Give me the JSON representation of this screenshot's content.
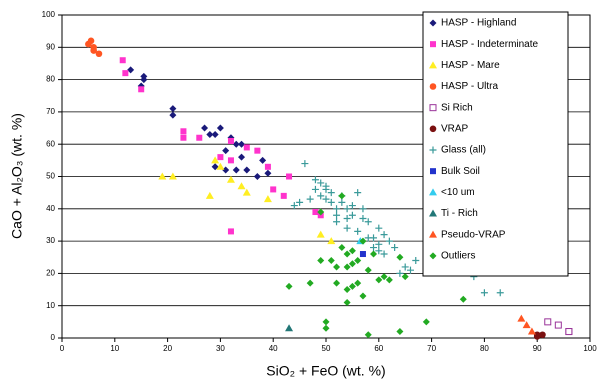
{
  "chart_data": {
    "type": "scatter",
    "xlabel": "SiO₂ + FeO (wt. %)",
    "ylabel": "CaO + Al₂O₃ (wt. %)",
    "xlim": [
      0,
      100
    ],
    "ylim": [
      0,
      100
    ],
    "xticks": [
      0,
      10,
      20,
      30,
      40,
      50,
      60,
      70,
      80,
      90,
      100
    ],
    "yticks": [
      0,
      10,
      20,
      30,
      40,
      50,
      60,
      70,
      80,
      90,
      100
    ],
    "grid": true,
    "legend": "upper right",
    "series": [
      {
        "name": "HASP - Highland",
        "color": "#1a1a7a",
        "marker": "diamond",
        "x": [
          13,
          15,
          15.5,
          15.5,
          21,
          21,
          27,
          28,
          29,
          30,
          29,
          31,
          31,
          32,
          33,
          34,
          33,
          35,
          37,
          38,
          39,
          34
        ],
        "values": [
          83,
          78,
          80,
          81,
          71,
          69,
          65,
          63,
          63,
          65,
          53,
          52,
          58,
          62,
          60,
          60,
          52,
          52,
          50,
          55,
          51,
          56
        ]
      },
      {
        "name": "HASP - Indeterminate",
        "color": "#ff33cc",
        "marker": "square",
        "x": [
          11.5,
          12,
          15,
          23,
          23,
          26,
          30,
          32,
          32,
          32,
          35,
          37,
          39,
          40,
          42,
          48,
          49,
          43
        ],
        "values": [
          86,
          82,
          77,
          64,
          62,
          62,
          56,
          61,
          55,
          33,
          59,
          58,
          53,
          46,
          44,
          39,
          38,
          50
        ]
      },
      {
        "name": "HASP - Mare",
        "color": "#ffee22",
        "marker": "triangle",
        "x": [
          19,
          21,
          28,
          29,
          30,
          32,
          34,
          35,
          39,
          49,
          51
        ],
        "values": [
          50,
          50,
          44,
          55,
          53,
          49,
          47,
          45,
          43,
          32,
          30
        ]
      },
      {
        "name": "HASP - Ultra",
        "color": "#ff5522",
        "marker": "circle",
        "x": [
          5,
          5.5,
          6,
          6,
          7
        ],
        "values": [
          91,
          92,
          90,
          89,
          88
        ]
      },
      {
        "name": "Si Rich",
        "color": "#993399",
        "marker": "hollow-square",
        "x": [
          92,
          94,
          96,
          96
        ],
        "values": [
          5,
          4,
          2,
          2
        ]
      },
      {
        "name": "VRAP",
        "color": "#7a1010",
        "marker": "circle",
        "x": [
          90,
          90,
          91
        ],
        "values": [
          1,
          0.5,
          1
        ]
      },
      {
        "name": "Glass (all)",
        "color": "#3a9a9a",
        "marker": "plus",
        "x": [
          45,
          46,
          48,
          48,
          49,
          49,
          50,
          50,
          50,
          51,
          51,
          52,
          52,
          53,
          53,
          54,
          54,
          55,
          55,
          56,
          57,
          57,
          58,
          59,
          59,
          60,
          60,
          61,
          61,
          62,
          63,
          64,
          65,
          66,
          67,
          69,
          70,
          71,
          78,
          80,
          83,
          52,
          54,
          56,
          58,
          60,
          44,
          47
        ],
        "values": [
          42,
          54,
          46,
          49,
          48,
          44,
          43,
          46,
          47,
          45,
          42,
          40,
          38,
          42,
          44,
          40,
          37,
          38,
          41,
          45,
          40,
          37,
          36,
          31,
          28,
          34,
          29,
          32,
          26,
          30,
          28,
          20,
          22,
          21,
          24,
          25,
          23,
          27,
          19,
          14,
          14,
          36,
          34,
          33,
          31,
          27,
          41,
          43
        ]
      },
      {
        "name": "Bulk Soil",
        "color": "#2233cc",
        "marker": "square",
        "x": [
          57
        ],
        "values": [
          26
        ]
      },
      {
        "name": "<10 um",
        "color": "#33ccee",
        "marker": "triangle",
        "x": [
          56.5
        ],
        "values": [
          30
        ]
      },
      {
        "name": "Ti - Rich",
        "color": "#227777",
        "marker": "triangle",
        "x": [
          43
        ],
        "values": [
          3
        ]
      },
      {
        "name": "Pseudo-VRAP",
        "color": "#ff5522",
        "marker": "triangle",
        "x": [
          87,
          88,
          89
        ],
        "values": [
          6,
          4,
          2
        ]
      },
      {
        "name": "Outliers",
        "color": "#22aa22",
        "marker": "diamond",
        "x": [
          43,
          47,
          49,
          49,
          50,
          51,
          52,
          52,
          53,
          53,
          54,
          54,
          54,
          55,
          55,
          55,
          56,
          56,
          57,
          57,
          58,
          59,
          60,
          61,
          62,
          64,
          64,
          65,
          69,
          76,
          58,
          50,
          54
        ],
        "values": [
          16,
          17,
          24,
          39,
          5,
          24,
          22,
          17,
          28,
          44,
          11,
          26,
          15,
          16,
          23,
          27,
          24,
          17,
          13,
          30,
          21,
          26,
          18,
          19,
          18,
          2,
          25,
          19,
          5,
          12,
          1,
          3,
          22
        ]
      }
    ]
  }
}
